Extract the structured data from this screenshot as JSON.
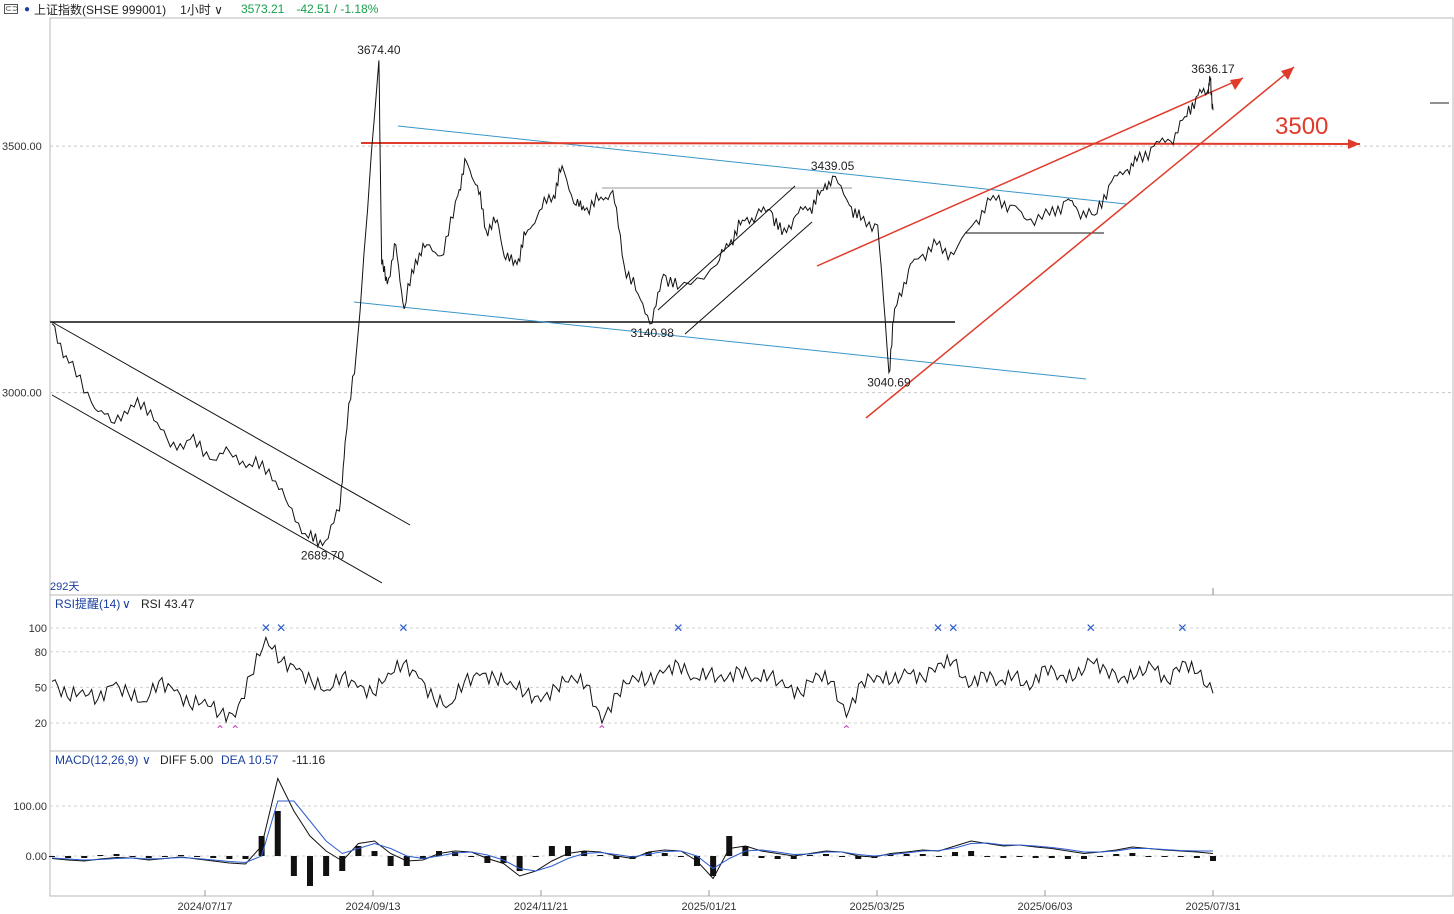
{
  "header": {
    "title": "上证指数(SHSE 999001)",
    "period": "1小时",
    "price": "3573.21",
    "change": "-42.51 / -1.18%"
  },
  "chart_data": {
    "type": "line",
    "title": "",
    "main": {
      "y_ticks": [
        "3500.00",
        "3000.00"
      ],
      "annotations": [
        {
          "text": "3674.40",
          "x": "2024/10/08",
          "y": 3674.4
        },
        {
          "text": "2689.70",
          "x": "2024/09/18",
          "y": 2689.7
        },
        {
          "text": "3140.98",
          "x": "2025/01/13",
          "y": 3140.98
        },
        {
          "text": "3439.05",
          "x": "2025/03/18",
          "y": 3439.05
        },
        {
          "text": "3040.69",
          "x": "2025/04/07",
          "y": 3040.69
        },
        {
          "text": "3636.17",
          "x": "2025/07/31",
          "y": 3636.17
        }
      ],
      "big_label": "3500",
      "days_label": "292天",
      "series": [
        {
          "x": "2024/06/14",
          "y": 3140
        },
        {
          "x": "2024/06/20",
          "y": 3060
        },
        {
          "x": "2024/06/28",
          "y": 2980
        },
        {
          "x": "2024/07/05",
          "y": 2940
        },
        {
          "x": "2024/07/12",
          "y": 2975
        },
        {
          "x": "2024/07/19",
          "y": 2965
        },
        {
          "x": "2024/07/26",
          "y": 2890
        },
        {
          "x": "2024/08/02",
          "y": 2905
        },
        {
          "x": "2024/08/09",
          "y": 2865
        },
        {
          "x": "2024/08/16",
          "y": 2880
        },
        {
          "x": "2024/08/23",
          "y": 2855
        },
        {
          "x": "2024/08/30",
          "y": 2845
        },
        {
          "x": "2024/09/06",
          "y": 2770
        },
        {
          "x": "2024/09/13",
          "y": 2705
        },
        {
          "x": "2024/09/18",
          "y": 2690
        },
        {
          "x": "2024/09/24",
          "y": 2760
        },
        {
          "x": "2024/09/26",
          "y": 2900
        },
        {
          "x": "2024/09/30",
          "y": 3080
        },
        {
          "x": "2024/10/08",
          "y": 3674
        },
        {
          "x": "2024/10/09",
          "y": 3260
        },
        {
          "x": "2024/10/11",
          "y": 3220
        },
        {
          "x": "2024/10/14",
          "y": 3300
        },
        {
          "x": "2024/10/17",
          "y": 3170
        },
        {
          "x": "2024/10/21",
          "y": 3270
        },
        {
          "x": "2024/10/25",
          "y": 3300
        },
        {
          "x": "2024/10/31",
          "y": 3280
        },
        {
          "x": "2024/11/05",
          "y": 3400
        },
        {
          "x": "2024/11/08",
          "y": 3470
        },
        {
          "x": "2024/11/12",
          "y": 3420
        },
        {
          "x": "2024/11/15",
          "y": 3330
        },
        {
          "x": "2024/11/19",
          "y": 3350
        },
        {
          "x": "2024/11/22",
          "y": 3270
        },
        {
          "x": "2024/11/26",
          "y": 3260
        },
        {
          "x": "2024/11/29",
          "y": 3320
        },
        {
          "x": "2024/12/04",
          "y": 3370
        },
        {
          "x": "2024/12/09",
          "y": 3400
        },
        {
          "x": "2024/12/12",
          "y": 3460
        },
        {
          "x": "2024/12/17",
          "y": 3380
        },
        {
          "x": "2024/12/20",
          "y": 3370
        },
        {
          "x": "2024/12/25",
          "y": 3390
        },
        {
          "x": "2024/12/30",
          "y": 3410
        },
        {
          "x": "2025/01/03",
          "y": 3260
        },
        {
          "x": "2025/01/08",
          "y": 3200
        },
        {
          "x": "2025/01/13",
          "y": 3141
        },
        {
          "x": "2025/01/17",
          "y": 3240
        },
        {
          "x": "2025/01/22",
          "y": 3210
        },
        {
          "x": "2025/02/05",
          "y": 3260
        },
        {
          "x": "2025/02/10",
          "y": 3310
        },
        {
          "x": "2025/02/14",
          "y": 3350
        },
        {
          "x": "2025/02/19",
          "y": 3360
        },
        {
          "x": "2025/02/24",
          "y": 3370
        },
        {
          "x": "2025/02/28",
          "y": 3320
        },
        {
          "x": "2025/03/05",
          "y": 3360
        },
        {
          "x": "2025/03/10",
          "y": 3375
        },
        {
          "x": "2025/03/14",
          "y": 3410
        },
        {
          "x": "2025/03/18",
          "y": 3439
        },
        {
          "x": "2025/03/24",
          "y": 3380
        },
        {
          "x": "2025/03/28",
          "y": 3350
        },
        {
          "x": "2025/04/03",
          "y": 3340
        },
        {
          "x": "2025/04/07",
          "y": 3041
        },
        {
          "x": "2025/04/09",
          "y": 3170
        },
        {
          "x": "2025/04/14",
          "y": 3250
        },
        {
          "x": "2025/04/18",
          "y": 3275
        },
        {
          "x": "2025/04/24",
          "y": 3300
        },
        {
          "x": "2025/04/30",
          "y": 3280
        },
        {
          "x": "2025/05/08",
          "y": 3350
        },
        {
          "x": "2025/05/14",
          "y": 3400
        },
        {
          "x": "2025/05/20",
          "y": 3380
        },
        {
          "x": "2025/05/26",
          "y": 3350
        },
        {
          "x": "2025/06/03",
          "y": 3360
        },
        {
          "x": "2025/06/09",
          "y": 3390
        },
        {
          "x": "2025/06/13",
          "y": 3370
        },
        {
          "x": "2025/06/19",
          "y": 3360
        },
        {
          "x": "2025/06/24",
          "y": 3420
        },
        {
          "x": "2025/06/30",
          "y": 3450
        },
        {
          "x": "2025/07/04",
          "y": 3470
        },
        {
          "x": "2025/07/10",
          "y": 3500
        },
        {
          "x": "2025/07/16",
          "y": 3510
        },
        {
          "x": "2025/07/21",
          "y": 3560
        },
        {
          "x": "2025/07/25",
          "y": 3600
        },
        {
          "x": "2025/07/29",
          "y": 3610
        },
        {
          "x": "2025/07/30",
          "y": 3636
        },
        {
          "x": "2025/07/31",
          "y": 3573
        }
      ]
    },
    "rsi": {
      "label": "RSI提醒(14)",
      "value_label": "RSI 43.47",
      "y_ticks": [
        "100",
        "80",
        "50",
        "20"
      ],
      "series": [
        55,
        42,
        48,
        40,
        52,
        45,
        38,
        55,
        47,
        35,
        40,
        28,
        25,
        60,
        92,
        72,
        65,
        55,
        48,
        60,
        50,
        45,
        62,
        70,
        58,
        40,
        35,
        55,
        60,
        58,
        55,
        45,
        38,
        50,
        60,
        52,
        20,
        45,
        60,
        55,
        62,
        70,
        58,
        62,
        55,
        65,
        58,
        60,
        50,
        45,
        62,
        55,
        25,
        55,
        60,
        55,
        62,
        58,
        70,
        72,
        50,
        62,
        55,
        60,
        48,
        68,
        60,
        58,
        72,
        65,
        58,
        60,
        68,
        55,
        72,
        62,
        45
      ]
    },
    "macd": {
      "label": "MACD(12,26,9)",
      "diff_label": "DIFF 5.00",
      "dea_label": "DEA 10.57",
      "hist_label": "-11.16",
      "y_ticks": [
        "100.00",
        "0.00"
      ],
      "diff": [
        -5,
        -8,
        -10,
        -6,
        -3,
        -4,
        -8,
        -5,
        -2,
        -6,
        -10,
        -14,
        -16,
        20,
        155,
        90,
        40,
        10,
        -10,
        25,
        30,
        5,
        -10,
        -8,
        5,
        10,
        8,
        -5,
        -15,
        -40,
        -30,
        -10,
        5,
        10,
        8,
        0,
        -5,
        8,
        12,
        10,
        -10,
        -45,
        15,
        20,
        10,
        5,
        0,
        5,
        10,
        8,
        0,
        -2,
        5,
        8,
        12,
        10,
        20,
        30,
        25,
        20,
        22,
        18,
        15,
        10,
        5,
        8,
        12,
        18,
        15,
        12,
        10,
        8,
        5
      ],
      "dea": [
        -4,
        -6,
        -8,
        -7,
        -5,
        -4,
        -6,
        -5,
        -3,
        -5,
        -8,
        -11,
        -13,
        0,
        110,
        110,
        70,
        30,
        5,
        15,
        25,
        15,
        0,
        -5,
        0,
        6,
        8,
        2,
        -8,
        -25,
        -30,
        -20,
        -5,
        5,
        7,
        3,
        -2,
        4,
        9,
        10,
        0,
        -25,
        -5,
        10,
        12,
        8,
        3,
        4,
        8,
        8,
        3,
        0,
        3,
        6,
        10,
        11,
        16,
        25,
        26,
        22,
        22,
        20,
        17,
        13,
        8,
        8,
        10,
        15,
        15,
        13,
        11,
        10,
        10
      ]
    },
    "x_ticks": [
      "2024/07/17",
      "2024/09/13",
      "2024/11/21",
      "2025/01/21",
      "2025/03/25",
      "2025/06/03",
      "2025/07/31"
    ],
    "y_range_main": [
      2620,
      3760
    ],
    "grid": "dashed-horizontal"
  }
}
